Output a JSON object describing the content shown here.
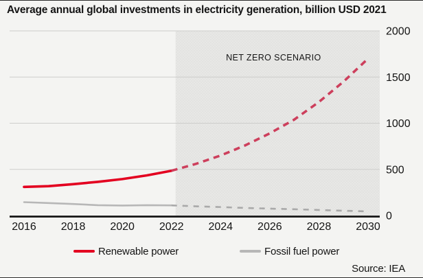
{
  "title": "Average annual global investments in electricity generation, billion USD 2021",
  "source": {
    "label": "Source: IEA"
  },
  "chart_data": {
    "type": "line",
    "title": "Average annual global investments in electricity generation, billion USD 2021",
    "annotation": "NET ZERO SCENARIO",
    "scenario_start": 2022,
    "x_range": [
      2016,
      2030
    ],
    "xticks": [
      2016,
      2018,
      2020,
      2022,
      2024,
      2026,
      2028,
      2030
    ],
    "ylim": [
      0,
      2000
    ],
    "yticks": [
      0,
      500,
      1000,
      1500,
      2000
    ],
    "grid": true,
    "legend_position": "bottom",
    "years_historical": [
      2016,
      2017,
      2018,
      2019,
      2020,
      2021,
      2022
    ],
    "years_scenario": [
      2022,
      2023,
      2024,
      2025,
      2026,
      2027,
      2028,
      2029,
      2030
    ],
    "series": [
      {
        "name": "Renewable power",
        "color": "#e30020",
        "dash_color": "#cd3f5c",
        "historical": [
          310,
          318,
          340,
          365,
          395,
          435,
          485
        ],
        "net_zero": [
          485,
          560,
          650,
          760,
          890,
          1040,
          1230,
          1450,
          1700
        ]
      },
      {
        "name": "Fossil fuel power",
        "color": "#b7b7b7",
        "dash_color": "#a9a9a9",
        "historical": [
          145,
          135,
          125,
          112,
          108,
          112,
          110
        ],
        "net_zero": [
          110,
          100,
          92,
          82,
          75,
          68,
          60,
          52,
          45
        ]
      }
    ],
    "colors": {
      "background": "#f4f4f2",
      "scenario_fill": "#e3e3e1",
      "gridline": "#cdcdcb",
      "axis": "#141414",
      "annotation_text": "#4d4d4d"
    }
  }
}
